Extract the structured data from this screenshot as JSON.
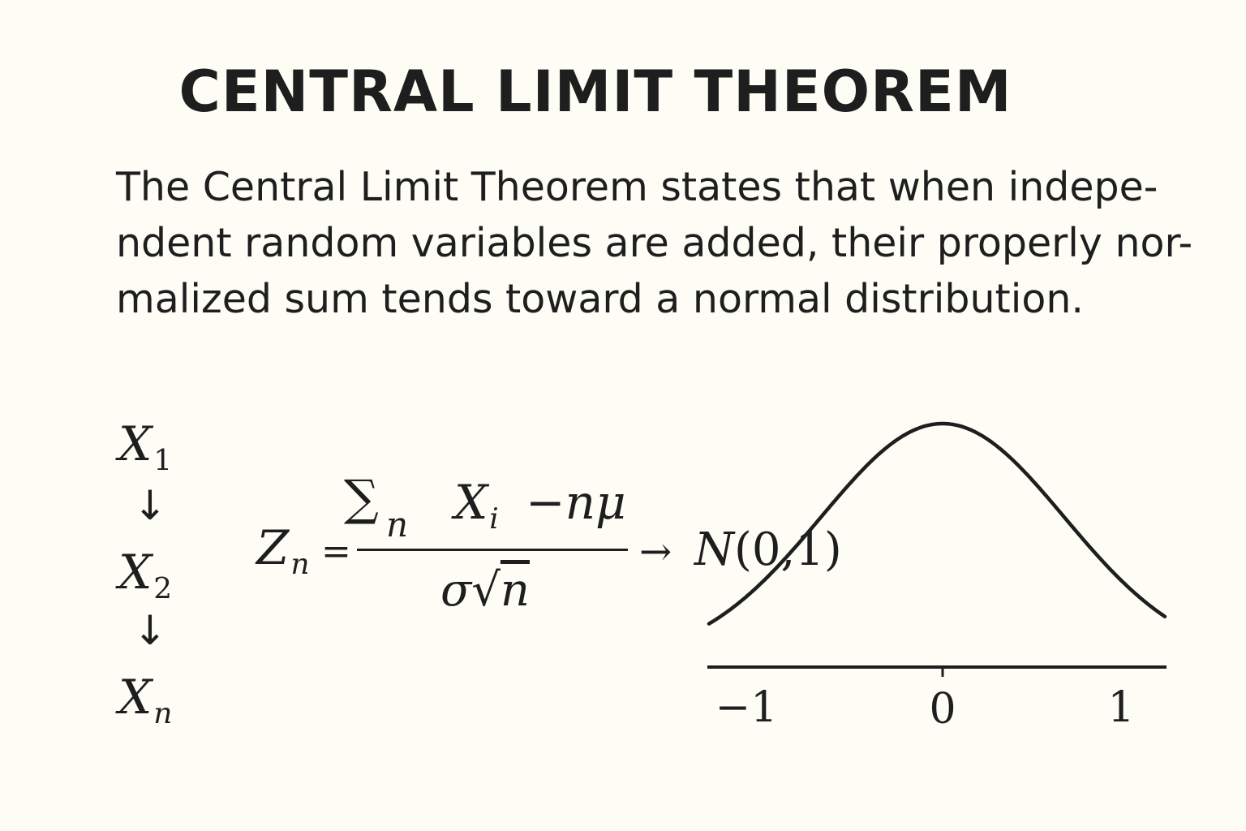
{
  "title": "CENTRAL LIMIT THEOREM",
  "description": {
    "lines": [
      "The Central Limit Theorem states that when indepe-",
      "ndent random variables are added, their properly nor-",
      "malized sum tends toward a normal distribution."
    ]
  },
  "variables": {
    "x1": {
      "symbol": "X",
      "subscript": "1"
    },
    "x2": {
      "symbol": "X",
      "subscript": "2"
    },
    "xn": {
      "symbol": "X",
      "subscript": "n"
    },
    "arrow": "↓"
  },
  "formula": {
    "lhs_symbol": "Z",
    "lhs_subscript": "n",
    "equals": "=",
    "sum_symbol": "∑",
    "sum_subscript": "n",
    "term_symbol": "X",
    "term_subscript": "i",
    "minus_term": "−nμ",
    "denominator_sigma": "σ",
    "denominator_sqrt": "√",
    "denominator_n": "n",
    "arrow": "→",
    "result": "N",
    "result_args": "(0,1)"
  },
  "chart_data": {
    "type": "line",
    "x_ticks": [
      "−1",
      "0",
      "1"
    ],
    "curve": "standard normal density"
  }
}
